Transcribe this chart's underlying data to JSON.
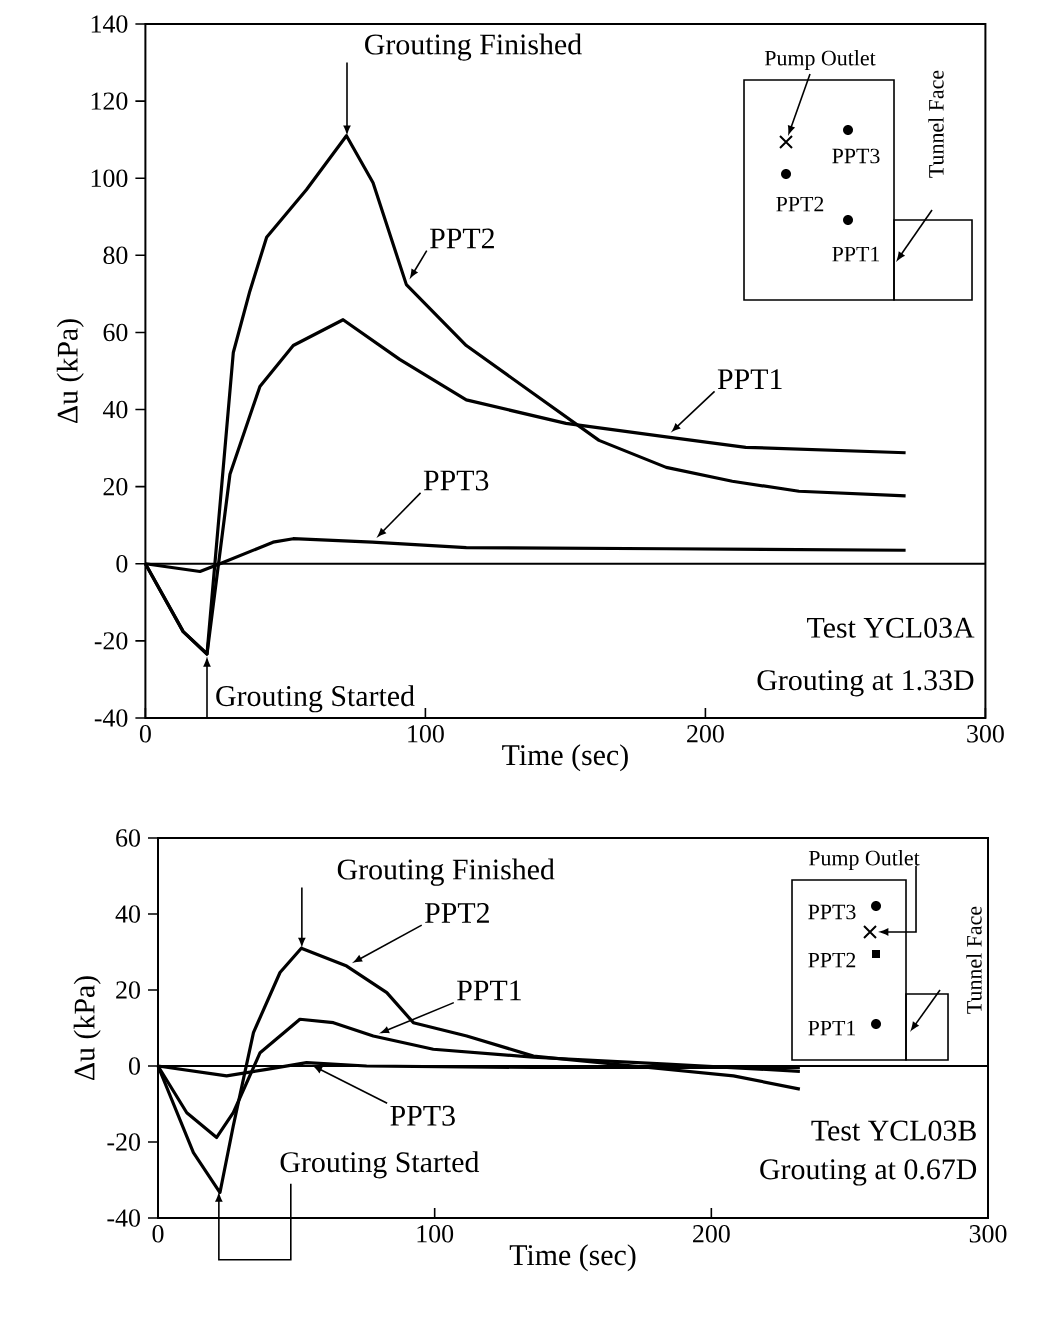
{
  "chart_data": [
    {
      "type": "line",
      "xlabel": "Time (sec)",
      "ylabel": "Δu (kPa)",
      "xlim": [
        0,
        300
      ],
      "ylim": [
        -40,
        140
      ],
      "xticks": [
        0,
        100,
        200,
        300
      ],
      "yticks": [
        -40,
        -20,
        0,
        20,
        40,
        60,
        80,
        100,
        120,
        140
      ],
      "grid": false,
      "ref_lines": [
        {
          "axis": "y",
          "value": 0
        }
      ],
      "annotations": [
        {
          "text": "Grouting Finished",
          "x": 72,
          "y": 111
        },
        {
          "text": "Grouting Started",
          "x": 22,
          "y": -24
        },
        "Test YCL03A",
        "Grouting at 1.33D",
        "Pump Outlet",
        "PPT3",
        "PPT2",
        "PPT1",
        "Tunnel Face"
      ],
      "series": [
        {
          "name": "PPT2",
          "color": "#000000",
          "x": [
            0,
            13.5,
            22,
            31.4,
            37.3,
            43.3,
            57.5,
            71.8,
            81.3,
            93.2,
            114.6,
            138.3,
            162,
            186,
            209.6,
            233.4,
            271.5
          ],
          "values": [
            0,
            -17.6,
            -23.4,
            54.8,
            70.7,
            84.7,
            97,
            111,
            98.8,
            72.4,
            56.6,
            44.3,
            32,
            25,
            21.4,
            18.8,
            17.6
          ]
        },
        {
          "name": "PPT1",
          "color": "#000000",
          "x": [
            0,
            13.5,
            22,
            30.2,
            40.9,
            52.8,
            70.6,
            90.8,
            114.6,
            150.2,
            186,
            214.4,
            271.5
          ],
          "values": [
            0,
            -17.6,
            -23.4,
            23.2,
            46,
            56.6,
            63.3,
            53,
            42.5,
            36.4,
            32.9,
            30.2,
            28.8
          ]
        },
        {
          "name": "PPT3",
          "color": "#000000",
          "x": [
            0,
            19.5,
            26.6,
            45.6,
            52.8,
            81,
            114.6,
            186,
            271.5
          ],
          "values": [
            0,
            -2,
            0,
            5.6,
            6.5,
            5.6,
            4.2,
            3.9,
            3.5
          ]
        }
      ]
    },
    {
      "type": "line",
      "xlabel": "Time (sec)",
      "ylabel": "Δu (kPa)",
      "xlim": [
        0,
        300
      ],
      "ylim": [
        -40,
        60
      ],
      "xticks": [
        0,
        100,
        200,
        300
      ],
      "yticks": [
        -40,
        -20,
        0,
        20,
        40,
        60
      ],
      "grid": false,
      "ref_lines": [
        {
          "axis": "y",
          "value": 0
        }
      ],
      "annotations": [
        {
          "text": "Grouting Finished",
          "x": 52,
          "y": 31
        },
        {
          "text": "Grouting Started",
          "x": 22,
          "y": -33
        },
        "Test YCL03B",
        "Grouting at 0.67D",
        "Pump Outlet",
        "PPT3",
        "PPT2",
        "PPT1",
        "Tunnel Face"
      ],
      "series": [
        {
          "name": "PPT2",
          "color": "#000000",
          "x": [
            0,
            12.8,
            22.4,
            27.2,
            34.5,
            44.1,
            51.8,
            68.2,
            82.7,
            92.3,
            111.6,
            135.7,
            171.8,
            208,
            232
          ],
          "values": [
            0,
            -22.8,
            -33.3,
            -15.8,
            8.8,
            24.6,
            31,
            26.3,
            19.3,
            11.4,
            7.9,
            2.6,
            0,
            -2.6,
            -6.1
          ]
        },
        {
          "name": "PPT1",
          "color": "#000000",
          "x": [
            0,
            10.4,
            21.2,
            27.2,
            36.9,
            51.3,
            63.4,
            77.8,
            99.5,
            135.7,
            183.9,
            232
          ],
          "values": [
            0,
            -12.3,
            -18.8,
            -12.3,
            3.5,
            12.3,
            11.4,
            7.9,
            4.4,
            2.3,
            0.5,
            -1.4
          ]
        },
        {
          "name": "PPT3",
          "color": "#000000",
          "x": [
            0,
            24.8,
            39.3,
            53.7,
            75.4,
            135.7,
            232
          ],
          "values": [
            0,
            -2.6,
            -0.9,
            0.9,
            0,
            -0.4,
            -0.4
          ]
        }
      ]
    }
  ]
}
